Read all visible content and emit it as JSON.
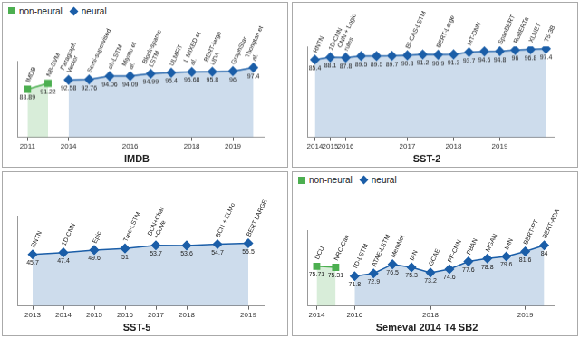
{
  "chart_data": [
    {
      "type": "line",
      "title": "IMDB",
      "categories": [
        "2011",
        null,
        "2014",
        null,
        null,
        "2016",
        null,
        null,
        "2018",
        null,
        "2019",
        null
      ],
      "series": [
        {
          "name": "non-neural",
          "color": "#4caf50",
          "marker": "square",
          "values": [
            88.89,
            91.22,
            null,
            null,
            null,
            null,
            null,
            null,
            null,
            null,
            null,
            null
          ],
          "point_labels": [
            "IMDB",
            "NB-SVM",
            null,
            null,
            null,
            null,
            null,
            null,
            null,
            null,
            null,
            null
          ]
        },
        {
          "name": "neural",
          "color": "#1b5ea8",
          "marker": "diamond",
          "values": [
            null,
            null,
            92.58,
            92.76,
            94.06,
            94.09,
            94.99,
            95.4,
            95.68,
            95.8,
            96,
            97.4
          ],
          "point_labels": [
            null,
            null,
            "Paragraph Vector",
            "Semi-supervised",
            "oh-LSTM",
            "Miyato et al.",
            "Block-sparse LSTM",
            "ULMFiT",
            "L MIXED et al.",
            "BERT-large UDA",
            "GraphStar",
            "Thongtan et al."
          ]
        }
      ],
      "ylim": [
        70,
        100
      ],
      "grid": false,
      "data_labels": true,
      "tick_labels": "x",
      "legend": "upper left"
    },
    {
      "type": "line",
      "title": "SST-2",
      "categories": [
        "2014",
        "2015",
        "2016",
        null,
        null,
        null,
        "2017",
        null,
        null,
        "2018",
        null,
        null,
        "2019",
        null,
        null,
        null
      ],
      "series": [
        {
          "color": "#1b5ea8",
          "marker": "diamond",
          "values": [
            85.4,
            88.1,
            87.8,
            89.5,
            89.5,
            89.7,
            90.3,
            91.2,
            90.9,
            91.3,
            93.7,
            94.6,
            94.8,
            96,
            96.8,
            97.4
          ],
          "point_labels": [
            "RNTN",
            "1D-CNN",
            "CNN + Logic rules",
            null,
            null,
            null,
            "BI-CAS-LSTM",
            null,
            "BERT-Large",
            null,
            "MT-DNN",
            null,
            "SpanBERT",
            "RoBERTa",
            "XLNET",
            "T5-3B"
          ]
        }
      ],
      "ylim": [
        0,
        100
      ],
      "grid": false,
      "data_labels": true,
      "tick_labels": "x"
    },
    {
      "type": "line",
      "title": "SST-5",
      "categories": [
        "2013",
        "2014",
        "2015",
        "2016",
        "2017",
        "2018",
        null,
        "2019"
      ],
      "series": [
        {
          "color": "#1b5ea8",
          "marker": "diamond",
          "values": [
            45.7,
            47.4,
            49.6,
            51,
            53.7,
            53.6,
            54.7,
            55.5
          ],
          "point_labels": [
            "RNTN",
            "1D-CNN",
            "Epic",
            "Tree-LSTM",
            "BCN+Char +CoVe",
            null,
            "BCN + ELMo",
            "BERT-LARGE"
          ]
        }
      ],
      "ylim": [
        0,
        80
      ],
      "grid": false,
      "data_labels": true,
      "tick_labels": "x"
    },
    {
      "type": "line",
      "title": "Semeval 2014 T4 SB2",
      "categories": [
        "2014",
        null,
        "2016",
        null,
        null,
        null,
        "2018",
        null,
        null,
        null,
        null,
        "2019",
        null
      ],
      "series": [
        {
          "name": "non-neural",
          "color": "#4caf50",
          "marker": "square",
          "values": [
            75.71,
            75.31,
            null,
            null,
            null,
            null,
            null,
            null,
            null,
            null,
            null,
            null,
            null
          ],
          "point_labels": [
            "DCU",
            "NRC-Can",
            null,
            null,
            null,
            null,
            null,
            null,
            null,
            null,
            null,
            null,
            null
          ]
        },
        {
          "name": "neural",
          "color": "#1b5ea8",
          "marker": "diamond",
          "values": [
            null,
            null,
            71.8,
            72.9,
            76.5,
            75.3,
            73.2,
            74.6,
            77.6,
            78.8,
            79.6,
            81.6,
            84
          ],
          "point_labels": [
            null,
            null,
            "TD-LSTM",
            "ATAE-LSTM",
            "MemNet",
            "IAN",
            "GCAE",
            "PF-CNN",
            "PBAN",
            "MGAN",
            "IMN",
            "BERT-PT",
            "BERT-ADA"
          ]
        }
      ],
      "ylim": [
        60,
        90
      ],
      "grid": false,
      "data_labels": true,
      "tick_labels": "x",
      "legend": "upper left"
    }
  ]
}
